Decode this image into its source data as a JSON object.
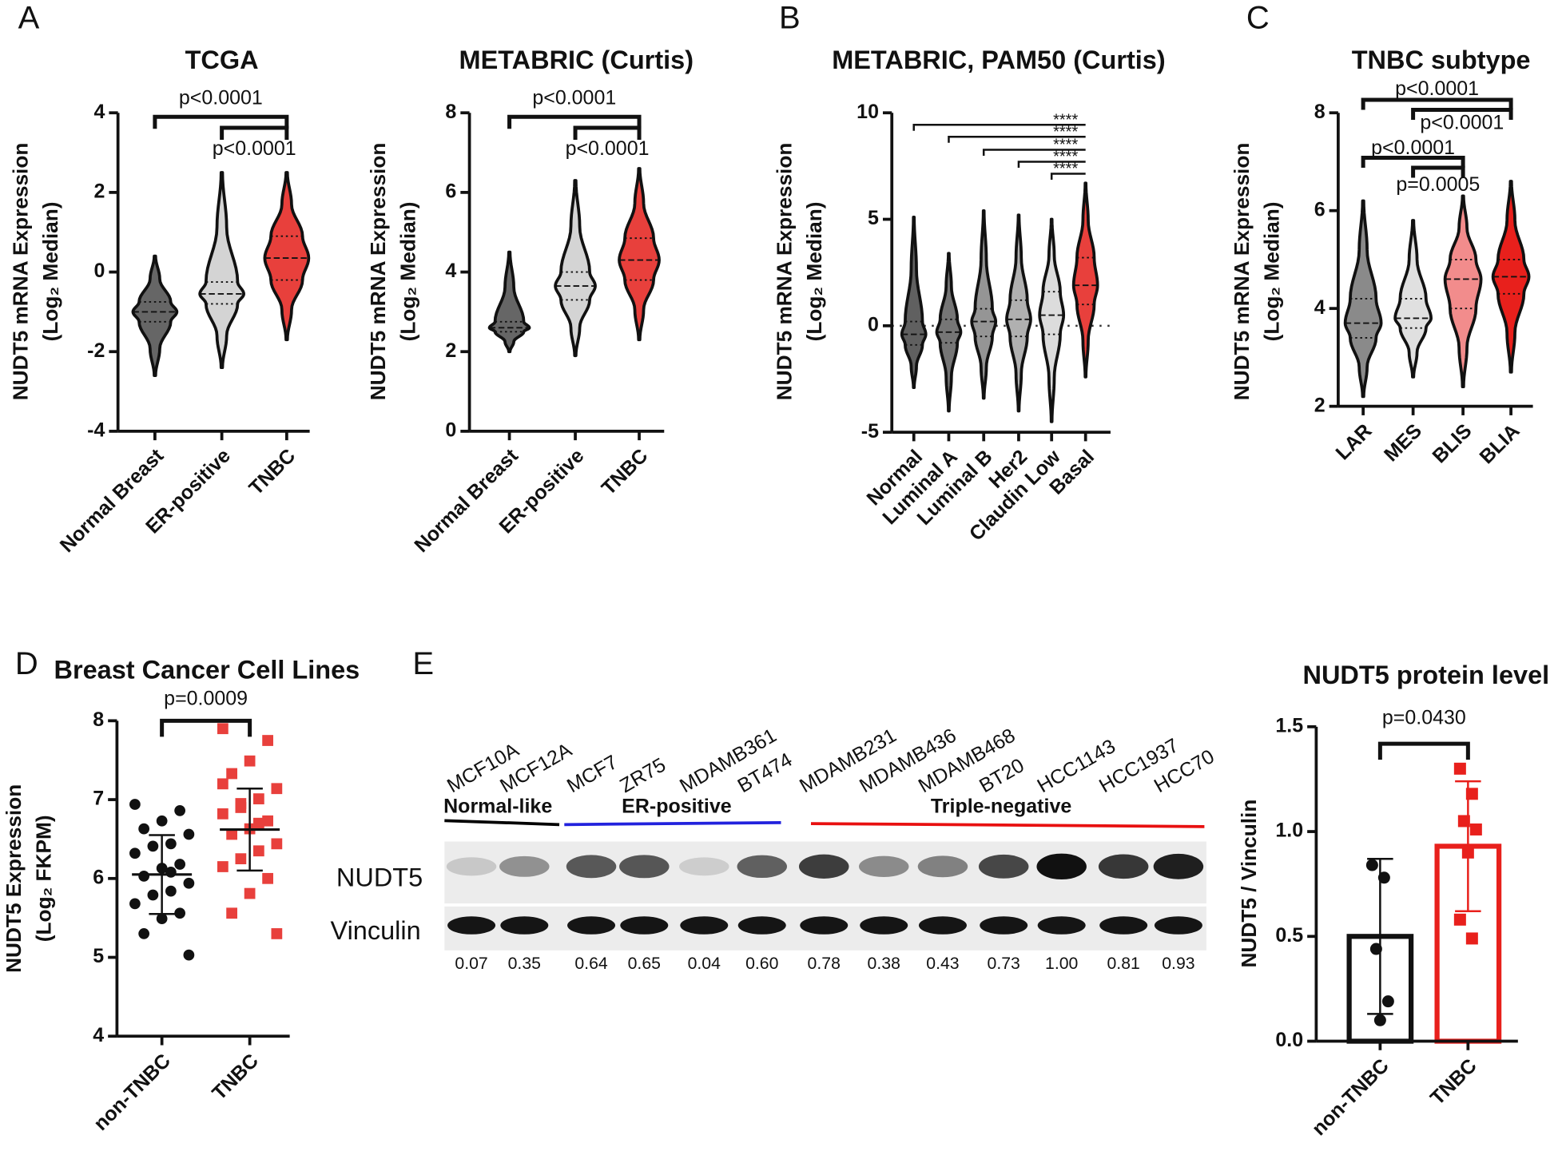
{
  "panel_labels": [
    "A",
    "B",
    "C",
    "D",
    "E"
  ],
  "chart_data": [
    {
      "type": "violin",
      "title": "TCGA",
      "ylabel": [
        "NUDT5 mRNA Expression",
        "(Log₂ Median)"
      ],
      "categories": [
        "Normal Breast",
        "ER-positive",
        "TNBC"
      ],
      "min": [
        -2.6,
        -2.4,
        -1.7
      ],
      "q1": [
        -1.25,
        -0.8,
        -0.2
      ],
      "median": [
        -1.0,
        -0.55,
        0.35
      ],
      "q3": [
        -0.75,
        -0.25,
        0.9
      ],
      "max": [
        0.4,
        2.5,
        2.5
      ],
      "colors": [
        "#666666",
        "#d4d4d4",
        "#e8403c"
      ],
      "ylim": [
        -4,
        4
      ],
      "yticks": [
        -4,
        -2,
        0,
        2,
        4
      ],
      "comparisons": [
        {
          "from": "Normal Breast",
          "to": "TNBC",
          "label": "p<0.0001"
        },
        {
          "from": "ER-positive",
          "to": "TNBC",
          "label": "p<0.0001"
        }
      ]
    },
    {
      "type": "violin",
      "title": "METABRIC (Curtis)",
      "ylabel": [
        "NUDT5 mRNA Expression",
        "(Log₂ Median)"
      ],
      "categories": [
        "Normal Breast",
        "ER-positive",
        "TNBC"
      ],
      "min": [
        2.0,
        1.9,
        2.3
      ],
      "q1": [
        2.5,
        3.3,
        3.8
      ],
      "median": [
        2.6,
        3.65,
        4.3
      ],
      "q3": [
        2.75,
        4.0,
        4.85
      ],
      "max": [
        4.5,
        6.3,
        6.6
      ],
      "colors": [
        "#666666",
        "#d4d4d4",
        "#e8403c"
      ],
      "ylim": [
        0,
        8
      ],
      "yticks": [
        0,
        2,
        4,
        6,
        8
      ],
      "comparisons": [
        {
          "from": "Normal Breast",
          "to": "TNBC",
          "label": "p<0.0001"
        },
        {
          "from": "ER-positive",
          "to": "TNBC",
          "label": "p<0.0001"
        }
      ]
    },
    {
      "type": "violin",
      "title": "METABRIC, PAM50 (Curtis)",
      "ylabel": [
        "NUDT5 mRNA Expression",
        "(Log₂ Median)"
      ],
      "categories": [
        "Normal",
        "Luminal A",
        "Luminal B",
        "Her2",
        "Claudin Low",
        "Basal"
      ],
      "min": [
        -2.9,
        -4.0,
        -3.4,
        -4.0,
        -4.5,
        -2.4
      ],
      "q1": [
        -0.9,
        -0.8,
        -0.5,
        -0.5,
        -0.4,
        1.0
      ],
      "median": [
        -0.4,
        -0.3,
        0.2,
        0.3,
        0.5,
        1.9
      ],
      "q3": [
        0.2,
        0.3,
        0.8,
        1.2,
        1.6,
        3.2
      ],
      "max": [
        5.1,
        3.4,
        5.4,
        5.2,
        5.0,
        6.7
      ],
      "colors": [
        "#606060",
        "#767676",
        "#959595",
        "#b0b0b0",
        "#dcdcdc",
        "#e8403c"
      ],
      "ylim": [
        -5,
        10
      ],
      "yticks": [
        -5,
        0,
        5,
        10
      ],
      "reference_line": 0,
      "comparisons": [
        {
          "from": "Normal",
          "to": "Basal",
          "label": "****"
        },
        {
          "from": "Luminal A",
          "to": "Basal",
          "label": "****"
        },
        {
          "from": "Luminal B",
          "to": "Basal",
          "label": "****"
        },
        {
          "from": "Her2",
          "to": "Basal",
          "label": "****"
        },
        {
          "from": "Claudin Low",
          "to": "Basal",
          "label": "****"
        }
      ]
    },
    {
      "type": "violin",
      "title": "TNBC subtype",
      "ylabel": [
        "NUDT5 mRNA Expression",
        "(Log₂ Median)"
      ],
      "categories": [
        "LAR",
        "MES",
        "BLIS",
        "BLIA"
      ],
      "min": [
        2.2,
        2.6,
        2.4,
        2.7
      ],
      "q1": [
        3.4,
        3.6,
        4.0,
        4.3
      ],
      "median": [
        3.7,
        3.8,
        4.6,
        4.65
      ],
      "q3": [
        4.2,
        4.2,
        5.0,
        5.0
      ],
      "max": [
        6.2,
        5.8,
        6.3,
        6.6
      ],
      "colors": [
        "#8a8a8a",
        "#e0e0e0",
        "#f28c8c",
        "#e8201c"
      ],
      "ylim": [
        2,
        8
      ],
      "yticks": [
        2,
        4,
        6,
        8
      ],
      "comparisons": [
        {
          "from": "LAR",
          "to": "BLIA",
          "label": "p<0.0001"
        },
        {
          "from": "MES",
          "to": "BLIA",
          "label": "p<0.0001"
        },
        {
          "from": "LAR",
          "to": "BLIS",
          "label": "p<0.0001"
        },
        {
          "from": "MES",
          "to": "BLIS",
          "label": "p=0.0005"
        }
      ]
    },
    {
      "type": "dotplot",
      "title": "Breast Cancer Cell Lines",
      "ylabel": [
        "NUDT5 Expression",
        "(Log₂ FKPM)"
      ],
      "categories": [
        "non-TNBC",
        "TNBC"
      ],
      "values": [
        [
          6.94,
          6.86,
          6.73,
          6.63,
          6.56,
          6.44,
          6.41,
          6.32,
          6.18,
          6.13,
          6.03,
          5.94,
          5.84,
          5.79,
          5.68,
          5.56,
          5.49,
          5.3,
          5.03,
          6.08
        ],
        [
          7.9,
          7.75,
          7.49,
          7.33,
          7.14,
          7.01,
          6.95,
          6.82,
          6.73,
          6.63,
          6.56,
          6.44,
          6.35,
          6.25,
          6.15,
          6.0,
          5.81,
          5.56,
          5.3,
          6.7,
          6.9,
          7.2
        ]
      ],
      "means": [
        6.05,
        6.62
      ],
      "sds": [
        0.5,
        0.52
      ],
      "colors": [
        "#111111",
        "#e8403c"
      ],
      "markers": [
        "circle",
        "square"
      ],
      "ylim": [
        4,
        8
      ],
      "yticks": [
        4,
        5,
        6,
        7,
        8
      ],
      "comparisons": [
        {
          "from": "non-TNBC",
          "to": "TNBC",
          "label": "p=0.0009"
        }
      ]
    },
    {
      "type": "bar",
      "title": "NUDT5 protein level",
      "ylabel": [
        "NUDT5 / Vinculin"
      ],
      "categories": [
        "non-TNBC",
        "TNBC"
      ],
      "values": [
        0.5,
        0.93
      ],
      "errors": [
        0.37,
        0.31
      ],
      "points": [
        [
          0.84,
          0.78,
          0.44,
          0.19,
          0.1
        ],
        [
          1.3,
          1.18,
          1.05,
          1.01,
          0.9,
          0.58,
          0.49
        ]
      ],
      "colors": [
        "#111111",
        "#e8201c"
      ],
      "markers": [
        "circle",
        "square"
      ],
      "ylim": [
        0,
        1.5
      ],
      "yticks": [
        {
          "value": 0,
          "label": "0.0"
        },
        {
          "value": 0.5,
          "label": "0.5"
        },
        {
          "value": 1,
          "label": "1.0"
        },
        {
          "value": 1.5,
          "label": "1.5"
        }
      ],
      "comparisons": [
        {
          "from": "non-TNBC",
          "to": "TNBC",
          "label": "p=0.0430"
        }
      ]
    }
  ],
  "blot": {
    "groups": [
      {
        "label": "Normal-like",
        "color": "#000000",
        "cell_lines": [
          "MCF10A",
          "MCF12A"
        ]
      },
      {
        "label": "ER-positive",
        "color": "#2222dd",
        "cell_lines": [
          "MCF7",
          "ZR75",
          "MDAMB361",
          "BT474"
        ]
      },
      {
        "label": "Triple-negative",
        "color": "#e81010",
        "cell_lines": [
          "MDAMB231",
          "MDAMB436",
          "MDAMB468",
          "BT20",
          "HCC1143",
          "HCC1937",
          "HCC70"
        ]
      }
    ],
    "rows": [
      "NUDT5",
      "Vinculin"
    ],
    "quantification": [
      0.07,
      0.35,
      0.64,
      0.65,
      0.04,
      {
        "value": 0.6,
        "label": "0.60"
      },
      0.78,
      0.38,
      0.43,
      0.73,
      {
        "value": 1,
        "label": "1.00"
      },
      0.81,
      0.93
    ]
  }
}
